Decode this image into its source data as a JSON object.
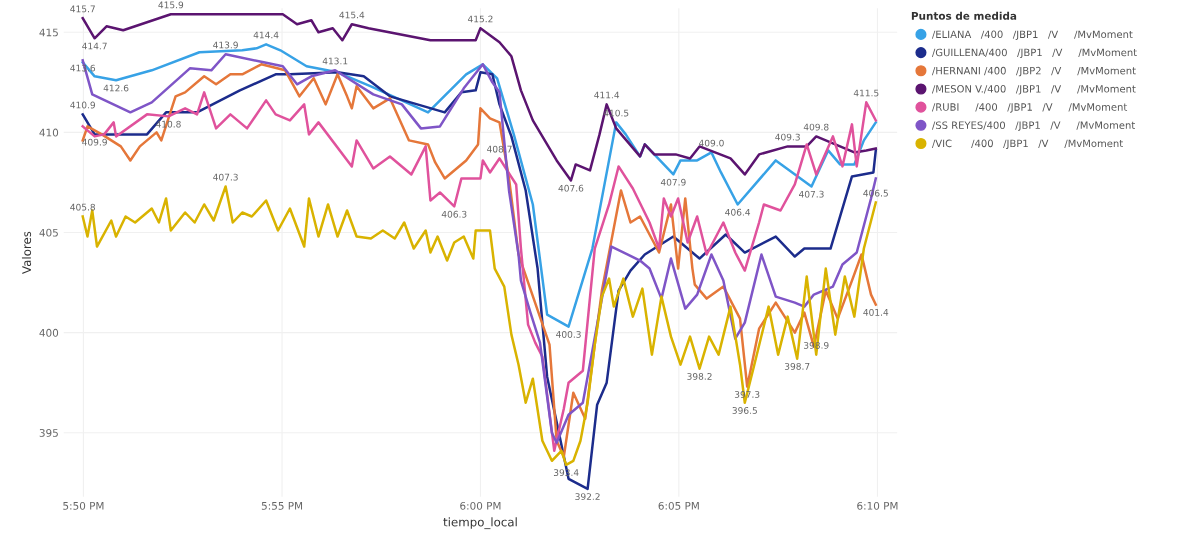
{
  "chart_data": {
    "type": "line",
    "xlabel": "tiempo_local",
    "ylabel": "Valores",
    "legend_title": "Puntos de medida",
    "legend": "right",
    "grid": true,
    "line_style": "solid",
    "marker": "none",
    "xlim": [
      17.825,
      18.175
    ],
    "xticks": [
      {
        "value": 17.8333,
        "label": "5:50 PM"
      },
      {
        "value": 17.9167,
        "label": "5:55 PM"
      },
      {
        "value": 18.0,
        "label": "6:00 PM"
      },
      {
        "value": 18.0833,
        "label": "6:05 PM"
      },
      {
        "value": 18.1667,
        "label": "6:10 PM"
      }
    ],
    "ylim": [
      391.8,
      416.2
    ],
    "yticks": [
      395,
      400,
      405,
      410,
      415
    ],
    "series": [
      {
        "name": "/ELIANA   /400   /JBP1   /V     /MvMoment",
        "color": "#37a2e6",
        "x": [
          17.833,
          17.838,
          17.847,
          17.862,
          17.882,
          17.9,
          17.906,
          17.91,
          17.916,
          17.927,
          17.94,
          17.954,
          17.978,
          17.994,
          18.001,
          18.007,
          18.014,
          18.022,
          18.028,
          18.037,
          18.047,
          18.057,
          18.061,
          18.067,
          18.069,
          18.081,
          18.084,
          18.091,
          18.097,
          18.101,
          18.108,
          18.124,
          18.139,
          18.146,
          18.151,
          18.157,
          18.161,
          18.166
        ],
        "values": [
          413.5,
          412.8,
          412.6,
          413.1,
          414.0,
          414.1,
          414.2,
          414.4,
          414.1,
          413.3,
          413.0,
          412.3,
          411.0,
          412.9,
          413.4,
          412.7,
          409.9,
          406.4,
          400.9,
          400.3,
          404.2,
          410.5,
          409.9,
          408.8,
          409.4,
          407.9,
          408.6,
          408.6,
          409.0,
          408.0,
          406.4,
          408.6,
          407.3,
          409.1,
          408.4,
          408.4,
          409.6,
          410.5
        ]
      },
      {
        "name": "/GUILLENA/400   /JBP1   /V     /MvMoment",
        "color": "#1c2c8c",
        "x": [
          17.833,
          17.838,
          17.86,
          17.868,
          17.881,
          17.899,
          17.914,
          17.92,
          17.94,
          17.951,
          17.962,
          17.985,
          17.992,
          17.998,
          18.0,
          18.005,
          18.008,
          18.013,
          18.019,
          18.024,
          18.028,
          18.037,
          18.045,
          18.049,
          18.053,
          18.058,
          18.063,
          18.069,
          18.081,
          18.092,
          18.103,
          18.111,
          18.124,
          18.132,
          18.136,
          18.147,
          18.156,
          18.165,
          18.166
        ],
        "values": [
          410.9,
          409.9,
          409.9,
          411.0,
          411.0,
          412.1,
          412.9,
          412.9,
          413.0,
          412.8,
          411.8,
          411.0,
          412.0,
          412.1,
          413.0,
          412.9,
          411.4,
          409.8,
          407.1,
          403.2,
          397.8,
          392.7,
          392.2,
          396.4,
          397.5,
          402.1,
          403.1,
          403.9,
          404.8,
          403.7,
          404.9,
          404.0,
          404.8,
          403.8,
          404.2,
          404.2,
          407.8,
          408.0,
          409.1
        ]
      },
      {
        "name": "/HERNANI /400   /JBP2   /V     /MvMoment",
        "color": "#e5773a",
        "x": [
          17.833,
          17.835,
          17.841,
          17.849,
          17.853,
          17.857,
          17.864,
          17.866,
          17.872,
          17.876,
          17.884,
          17.889,
          17.895,
          17.9,
          17.908,
          17.918,
          17.924,
          17.93,
          17.935,
          17.94,
          17.944,
          17.946,
          17.948,
          17.955,
          17.962,
          17.97,
          17.978,
          17.981,
          17.985,
          17.994,
          17.999,
          18.0,
          18.004,
          18.008,
          18.012,
          18.016,
          18.029,
          18.032,
          18.035,
          18.039,
          18.044,
          18.048,
          18.051,
          18.059,
          18.063,
          18.067,
          18.075,
          18.08,
          18.083,
          18.086,
          18.089,
          18.09,
          18.095,
          18.102,
          18.109,
          18.112,
          18.117,
          18.124,
          18.132,
          18.136,
          18.14,
          18.145,
          18.15,
          18.156,
          18.16,
          18.164,
          18.166
        ],
        "values": [
          409.6,
          410.3,
          409.9,
          409.3,
          408.6,
          409.3,
          410.0,
          409.6,
          411.8,
          412.0,
          412.8,
          412.4,
          412.9,
          412.9,
          413.4,
          413.1,
          411.8,
          412.7,
          411.4,
          412.9,
          411.8,
          411.2,
          412.3,
          411.2,
          411.7,
          409.6,
          409.4,
          408.5,
          407.7,
          408.6,
          409.4,
          411.2,
          410.7,
          410.5,
          407.7,
          403.9,
          399.4,
          394.6,
          393.8,
          397.0,
          395.7,
          399.4,
          402.1,
          407.1,
          405.5,
          405.8,
          404.0,
          406.4,
          403.2,
          406.7,
          403.2,
          402.4,
          401.7,
          402.3,
          400.7,
          397.3,
          400.2,
          401.5,
          400.0,
          401.0,
          399.3,
          402.1,
          400.7,
          402.6,
          403.9,
          401.9,
          401.4
        ]
      },
      {
        "name": "/MESON V./400   /JBP1   /V     /MvMoment",
        "color": "#5b1470",
        "x": [
          17.833,
          17.838,
          17.843,
          17.85,
          17.87,
          17.917,
          17.923,
          17.929,
          17.932,
          17.938,
          17.942,
          17.946,
          17.953,
          17.979,
          17.998,
          18.0,
          18.008,
          18.013,
          18.017,
          18.022,
          18.032,
          18.038,
          18.04,
          18.046,
          18.05,
          18.053,
          18.057,
          18.067,
          18.069,
          18.073,
          18.082,
          18.088,
          18.092,
          18.105,
          18.111,
          18.117,
          18.129,
          18.137,
          18.141,
          18.149,
          18.157,
          18.162,
          18.166
        ],
        "values": [
          415.7,
          414.7,
          415.3,
          415.1,
          415.9,
          415.9,
          415.4,
          415.6,
          415.0,
          415.2,
          414.6,
          415.4,
          415.2,
          414.6,
          414.6,
          415.2,
          414.5,
          413.8,
          412.1,
          410.6,
          408.6,
          407.6,
          408.4,
          408.1,
          409.9,
          411.4,
          410.2,
          408.8,
          409.4,
          408.9,
          408.9,
          408.7,
          409.3,
          408.7,
          407.9,
          408.9,
          409.3,
          409.3,
          409.8,
          409.4,
          409.0,
          409.1,
          409.2
        ]
      },
      {
        "name": "/RUBI     /400   /JBP1   /V     /MvMoment",
        "color": "#e0529c",
        "x": [
          17.833,
          17.838,
          17.842,
          17.846,
          17.847,
          17.86,
          17.869,
          17.876,
          17.881,
          17.884,
          17.889,
          17.895,
          17.902,
          17.91,
          17.914,
          17.92,
          17.926,
          17.928,
          17.932,
          17.946,
          17.948,
          17.955,
          17.962,
          17.971,
          17.977,
          17.979,
          17.983,
          17.989,
          17.992,
          18.0,
          18.001,
          18.004,
          18.008,
          18.015,
          18.017,
          18.02,
          18.023,
          18.026,
          18.031,
          18.035,
          18.037,
          18.043,
          18.048,
          18.054,
          18.058,
          18.064,
          18.071,
          18.075,
          18.077,
          18.08,
          18.083,
          18.087,
          18.091,
          18.095,
          18.102,
          18.107,
          18.111,
          18.117,
          18.119,
          18.126,
          18.132,
          18.137,
          18.141,
          18.148,
          18.152,
          18.156,
          18.158,
          18.162,
          18.166
        ],
        "values": [
          410.3,
          409.8,
          409.9,
          410.5,
          409.8,
          410.9,
          410.8,
          411.2,
          410.9,
          412.0,
          410.2,
          410.9,
          410.2,
          411.6,
          410.9,
          410.6,
          411.4,
          409.9,
          410.5,
          408.3,
          409.6,
          408.2,
          408.8,
          407.9,
          409.3,
          406.6,
          407.0,
          406.3,
          407.7,
          407.7,
          408.6,
          408.0,
          408.7,
          407.4,
          404.2,
          400.4,
          399.5,
          398.8,
          394.1,
          396.2,
          397.5,
          398.1,
          404.2,
          406.4,
          408.3,
          407.2,
          405.5,
          404.2,
          406.7,
          405.8,
          406.7,
          404.5,
          405.8,
          403.9,
          405.5,
          404.0,
          403.1,
          405.5,
          406.4,
          406.1,
          407.4,
          409.4,
          407.9,
          409.8,
          408.3,
          410.4,
          408.3,
          411.5,
          410.6
        ]
      },
      {
        "name": "/SS REYES/400   /JBP1   /V     /MvMoment",
        "color": "#7f55c7",
        "x": [
          17.833,
          17.837,
          17.853,
          17.862,
          17.878,
          17.887,
          17.893,
          17.909,
          17.917,
          17.923,
          17.929,
          17.939,
          17.955,
          17.967,
          17.975,
          17.983,
          17.993,
          18.001,
          18.005,
          18.008,
          18.012,
          18.016,
          18.017,
          18.021,
          18.025,
          18.03,
          18.032,
          18.037,
          18.043,
          18.055,
          18.067,
          18.071,
          18.076,
          18.08,
          18.086,
          18.091,
          18.097,
          18.102,
          18.107,
          18.111,
          18.118,
          18.124,
          18.132,
          18.136,
          18.14,
          18.148,
          18.152,
          18.158,
          18.164,
          18.166
        ],
        "values": [
          413.6,
          411.9,
          411.0,
          411.5,
          413.2,
          413.1,
          413.9,
          413.5,
          413.3,
          412.4,
          412.8,
          413.1,
          411.9,
          411.4,
          410.2,
          410.3,
          412.2,
          413.4,
          412.5,
          412.0,
          407.1,
          403.9,
          402.6,
          401.0,
          399.5,
          395.0,
          394.5,
          395.9,
          396.5,
          404.3,
          403.6,
          403.2,
          401.7,
          403.7,
          401.2,
          401.9,
          403.9,
          402.6,
          399.7,
          400.5,
          403.9,
          401.8,
          401.5,
          401.3,
          401.9,
          402.3,
          403.4,
          404.0,
          406.7,
          407.7
        ]
      },
      {
        "name": "/VIC      /400   /JBP1   /V     /MvMoment",
        "color": "#d9b300",
        "x": [
          17.833,
          17.835,
          17.837,
          17.839,
          17.845,
          17.847,
          17.851,
          17.855,
          17.862,
          17.865,
          17.868,
          17.87,
          17.876,
          17.88,
          17.884,
          17.888,
          17.893,
          17.896,
          17.9,
          17.904,
          17.91,
          17.915,
          17.92,
          17.926,
          17.928,
          17.932,
          17.936,
          17.94,
          17.944,
          17.948,
          17.954,
          17.959,
          17.964,
          17.968,
          17.972,
          17.977,
          17.979,
          17.982,
          17.986,
          17.989,
          17.993,
          17.997,
          17.998,
          18.004,
          18.006,
          18.01,
          18.013,
          18.016,
          18.019,
          18.022,
          18.026,
          18.03,
          18.034,
          18.036,
          18.039,
          18.042,
          18.045,
          18.048,
          18.051,
          18.054,
          18.056,
          18.06,
          18.064,
          18.068,
          18.072,
          18.076,
          18.08,
          18.084,
          18.088,
          18.092,
          18.096,
          18.1,
          18.105,
          18.109,
          18.111,
          18.115,
          18.121,
          18.125,
          18.129,
          18.133,
          18.137,
          18.141,
          18.145,
          18.149,
          18.153,
          18.157,
          18.161,
          18.166
        ],
        "values": [
          405.8,
          404.8,
          406.1,
          404.3,
          405.6,
          404.8,
          405.8,
          405.5,
          406.2,
          405.5,
          406.7,
          405.1,
          406.0,
          405.5,
          406.4,
          405.6,
          407.3,
          405.5,
          406.0,
          405.8,
          406.6,
          405.1,
          406.2,
          404.3,
          406.7,
          404.8,
          406.4,
          404.8,
          406.1,
          404.8,
          404.7,
          405.1,
          404.7,
          405.5,
          404.2,
          405.1,
          404.0,
          404.8,
          403.6,
          404.5,
          404.8,
          403.7,
          405.1,
          405.1,
          403.2,
          402.3,
          399.9,
          398.4,
          396.5,
          397.7,
          394.6,
          393.6,
          394.1,
          393.4,
          393.6,
          394.6,
          396.5,
          399.4,
          401.8,
          402.7,
          401.3,
          402.7,
          400.8,
          402.2,
          398.9,
          401.8,
          399.8,
          398.4,
          399.8,
          398.2,
          399.8,
          398.9,
          401.3,
          398.4,
          396.5,
          398.4,
          401.3,
          398.9,
          400.8,
          398.7,
          402.8,
          398.9,
          403.2,
          399.9,
          402.8,
          400.8,
          404.2,
          406.5
        ]
      }
    ],
    "annotations": [
      {
        "text": "415.7",
        "x": 17.833,
        "y": 415.7
      },
      {
        "text": "414.7",
        "x": 17.838,
        "y": 414.7
      },
      {
        "text": "415.9",
        "x": 17.87,
        "y": 415.9
      },
      {
        "text": "415.4",
        "x": 17.946,
        "y": 415.4
      },
      {
        "text": "415.2",
        "x": 18.0,
        "y": 415.2
      },
      {
        "text": "407.6",
        "x": 18.038,
        "y": 407.6
      },
      {
        "text": "411.4",
        "x": 18.053,
        "y": 411.4
      },
      {
        "text": "409.8",
        "x": 18.141,
        "y": 409.8
      },
      {
        "text": "409.3",
        "x": 18.129,
        "y": 409.3
      },
      {
        "text": "414.4",
        "x": 17.91,
        "y": 414.4
      },
      {
        "text": "412.6",
        "x": 17.847,
        "y": 412.6
      },
      {
        "text": "413.6",
        "x": 17.833,
        "y": 413.6
      },
      {
        "text": "413.9",
        "x": 17.893,
        "y": 413.9
      },
      {
        "text": "413.1",
        "x": 17.939,
        "y": 413.1
      },
      {
        "text": "410.9",
        "x": 17.833,
        "y": 410.9
      },
      {
        "text": "409.9",
        "x": 17.838,
        "y": 409.9
      },
      {
        "text": "410.8",
        "x": 17.869,
        "y": 410.8
      },
      {
        "text": "406.3",
        "x": 17.989,
        "y": 406.3
      },
      {
        "text": "408.7",
        "x": 18.008,
        "y": 408.7
      },
      {
        "text": "407.3",
        "x": 17.893,
        "y": 407.3
      },
      {
        "text": "405.8",
        "x": 17.833,
        "y": 405.8
      },
      {
        "text": "400.3",
        "x": 18.037,
        "y": 400.3
      },
      {
        "text": "410.5",
        "x": 18.057,
        "y": 410.5
      },
      {
        "text": "409.0",
        "x": 18.097,
        "y": 409.0
      },
      {
        "text": "407.9",
        "x": 18.081,
        "y": 407.9
      },
      {
        "text": "406.4",
        "x": 18.108,
        "y": 406.4
      },
      {
        "text": "407.3",
        "x": 18.139,
        "y": 407.3
      },
      {
        "text": "392.2",
        "x": 18.045,
        "y": 392.2
      },
      {
        "text": "393.4",
        "x": 18.036,
        "y": 393.4
      },
      {
        "text": "398.2",
        "x": 18.092,
        "y": 398.2
      },
      {
        "text": "396.5",
        "x": 18.111,
        "y": 396.5
      },
      {
        "text": "398.7",
        "x": 18.133,
        "y": 398.7
      },
      {
        "text": "398.9",
        "x": 18.141,
        "y": 398.9
      },
      {
        "text": "406.5",
        "x": 18.166,
        "y": 406.5
      },
      {
        "text": "397.3",
        "x": 18.112,
        "y": 397.3
      },
      {
        "text": "401.4",
        "x": 18.166,
        "y": 401.4
      },
      {
        "text": "411.5",
        "x": 18.162,
        "y": 411.5
      }
    ]
  }
}
